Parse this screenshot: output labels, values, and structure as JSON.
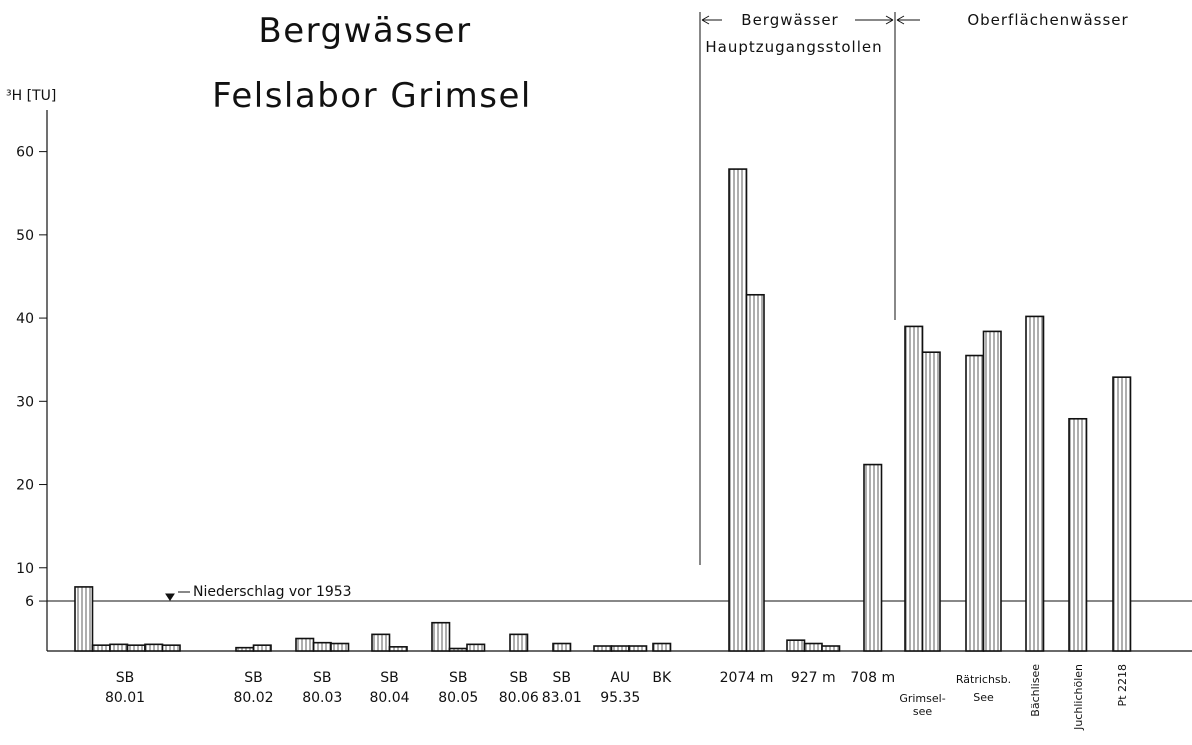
{
  "chart_data": {
    "type": "bar",
    "title": "Bergwässer",
    "subtitle": "Felslabor Grimsel",
    "y_label": "³H [TU]",
    "ylim": [
      0,
      65
    ],
    "yticks": [
      6,
      10,
      20,
      30,
      40,
      50,
      60
    ],
    "reference_line": {
      "value": 6,
      "label": "Niederschlag vor 1953"
    },
    "sections": [
      {
        "label": [
          "Bergwässer",
          "Hauptzugangsstollen"
        ]
      },
      {
        "label": [
          "Oberflächenwässer"
        ]
      }
    ],
    "groups": [
      {
        "label": [
          "SB",
          "80.01"
        ],
        "values": [
          7.7,
          0.7,
          0.8,
          0.7,
          0.8,
          0.7
        ]
      },
      {
        "label": [
          "SB",
          "80.02"
        ],
        "values": [
          0.4,
          0.7
        ]
      },
      {
        "label": [
          "SB",
          "80.03"
        ],
        "values": [
          1.5,
          1.0,
          0.9
        ]
      },
      {
        "label": [
          "SB",
          "80.04"
        ],
        "values": [
          2.0,
          0.5
        ]
      },
      {
        "label": [
          "SB",
          "80.05"
        ],
        "values": [
          3.4,
          0.3,
          0.8
        ]
      },
      {
        "label": [
          "SB",
          "80.06"
        ],
        "values": [
          2.0
        ]
      },
      {
        "label": [
          "SB",
          "83.01"
        ],
        "values": [
          0.9
        ]
      },
      {
        "label": [
          "AU",
          "95.35"
        ],
        "values": [
          0.6,
          0.6,
          0.6
        ]
      },
      {
        "label": [
          "BK"
        ],
        "values": [
          0.9
        ]
      },
      {
        "label": [
          "2074 m"
        ],
        "values": [
          57.9,
          42.8
        ]
      },
      {
        "label": [
          "927 m"
        ],
        "values": [
          1.3,
          0.9,
          0.6
        ]
      },
      {
        "label": [
          "708 m"
        ],
        "values": [
          22.4
        ]
      },
      {
        "label": [
          "Grimsel-",
          "see"
        ],
        "values": [
          39.0,
          35.9
        ]
      },
      {
        "label": [
          "Rätrichsb.",
          "See"
        ],
        "values": [
          35.5,
          38.4
        ]
      },
      {
        "label": [
          "Bächlisee"
        ],
        "values": [
          40.2
        ],
        "label_rotated": true
      },
      {
        "label": [
          "Juchlichölen"
        ],
        "values": [
          27.9
        ],
        "label_rotated": true
      },
      {
        "label": [
          "Pt 2218"
        ],
        "values": [
          32.9
        ],
        "label_rotated": true
      }
    ]
  }
}
